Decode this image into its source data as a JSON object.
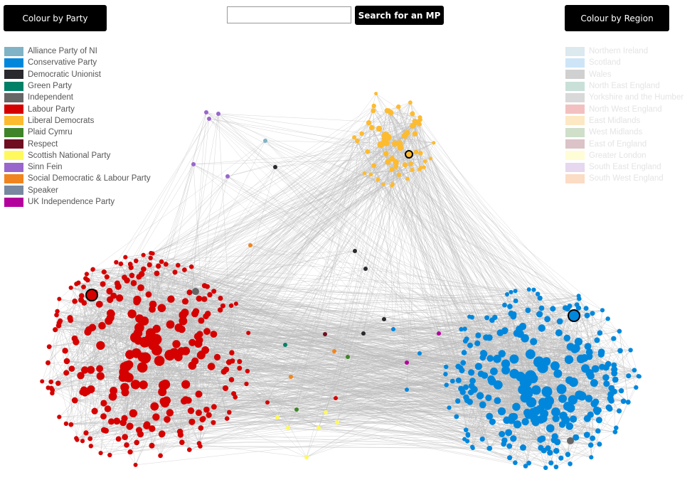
{
  "buttons": {
    "party": "Colour by Party",
    "search": "Search for an MP",
    "region": "Colour by Region"
  },
  "party_legend": [
    {
      "label": "Alliance Party of NI",
      "color": "#7fb3c5"
    },
    {
      "label": "Conservative Party",
      "color": "#0087dc"
    },
    {
      "label": "Democratic Unionist",
      "color": "#2a2a2e"
    },
    {
      "label": "Green Party",
      "color": "#008066"
    },
    {
      "label": "Independent",
      "color": "#666666"
    },
    {
      "label": "Labour Party",
      "color": "#d50000"
    },
    {
      "label": "Liberal Democrats",
      "color": "#fdbb30"
    },
    {
      "label": "Plaid Cymru",
      "color": "#3f8428"
    },
    {
      "label": "Respect",
      "color": "#6f0e21"
    },
    {
      "label": "Scottish National Party",
      "color": "#fff95d"
    },
    {
      "label": "Sinn Fein",
      "color": "#9966cc"
    },
    {
      "label": "Social Democratic & Labour Party",
      "color": "#f0851f"
    },
    {
      "label": "Speaker",
      "color": "#7788a0"
    },
    {
      "label": "UK Independence Party",
      "color": "#b3009d"
    }
  ],
  "region_legend": [
    {
      "label": "Northern Ireland",
      "color": "#dce9ee"
    },
    {
      "label": "Scotland",
      "color": "#cde5f7"
    },
    {
      "label": "Wales",
      "color": "#d0d0d0"
    },
    {
      "label": "North East England",
      "color": "#c9e0d9"
    },
    {
      "label": "Yorkshire and the Humber",
      "color": "#d9d9d9"
    },
    {
      "label": "North West England",
      "color": "#f2c0c0"
    },
    {
      "label": "East Midlands",
      "color": "#fde8c4"
    },
    {
      "label": "West Midlands",
      "color": "#cfdfca"
    },
    {
      "label": "East of England",
      "color": "#dbc3c8"
    },
    {
      "label": "Greater London",
      "color": "#fefdd6"
    },
    {
      "label": "South East England",
      "color": "#e6d8ef"
    },
    {
      "label": "South West England",
      "color": "#fbdcc4"
    }
  ]
}
